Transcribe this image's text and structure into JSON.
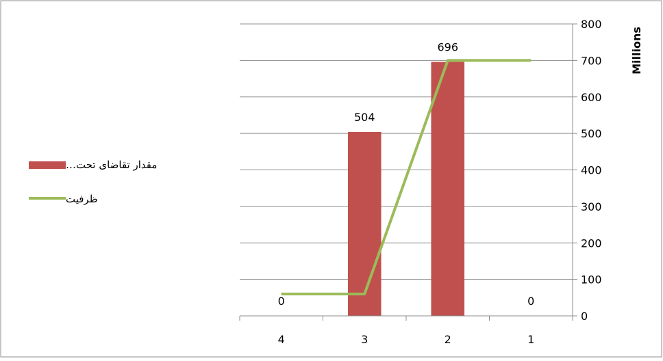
{
  "chart_data": {
    "type": "bar",
    "categories": [
      "4",
      "3",
      "2",
      "1"
    ],
    "x_axis_direction": "right-to-left",
    "y_axis": {
      "position": "right",
      "title": "Millions",
      "ylim": [
        0,
        800
      ],
      "ticks": [
        "0",
        "100",
        "200",
        "300",
        "400",
        "500",
        "600",
        "700",
        "800"
      ]
    },
    "grid": true,
    "legend_position": "left",
    "series": [
      {
        "name": "مقدار تقاضای تحت…",
        "kind": "bar",
        "color": "#c0504d",
        "values": [
          0,
          504,
          696,
          0
        ],
        "data_labels": [
          "0",
          "504",
          "696",
          "0"
        ]
      },
      {
        "name": "ظرفیت",
        "kind": "line",
        "color": "#9bbb59",
        "values": [
          60,
          60,
          700,
          700
        ]
      }
    ]
  }
}
